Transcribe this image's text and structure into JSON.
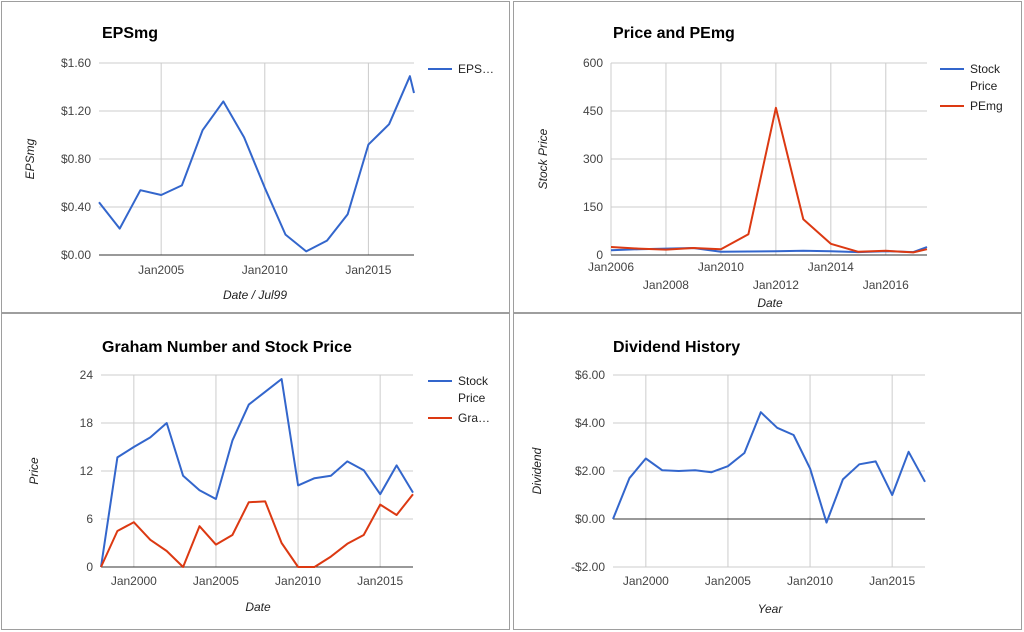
{
  "colors": {
    "blue": "#3366cc",
    "red": "#dc3912",
    "grid": "#cccccc",
    "axis": "#333333"
  },
  "chart_data": [
    {
      "type": "line",
      "title": "EPSmg",
      "xlabel": "Date / Jul99",
      "ylabel": "EPSmg",
      "ylim": [
        0,
        1.6
      ],
      "yticks": [
        0,
        0.4,
        0.8,
        1.2,
        1.6
      ],
      "ytick_labels": [
        "$0.00",
        "$0.40",
        "$0.80",
        "$1.20",
        "$1.60"
      ],
      "xlim": [
        2002,
        2017.2
      ],
      "xticks": [
        2005,
        2010,
        2015
      ],
      "xtick_labels": [
        "Jan2005",
        "Jan2010",
        "Jan2015"
      ],
      "grid": true,
      "legend_position": "right",
      "series": [
        {
          "name": "EPS…",
          "color": "#3366cc",
          "x": [
            2002,
            2003,
            2004,
            2005,
            2006,
            2007,
            2008,
            2009,
            2010,
            2011,
            2012,
            2013,
            2014,
            2015,
            2016,
            2017,
            2017.2
          ],
          "y": [
            0.44,
            0.22,
            0.54,
            0.5,
            0.58,
            1.04,
            1.28,
            0.98,
            0.56,
            0.17,
            0.03,
            0.12,
            0.34,
            0.92,
            1.09,
            1.49,
            1.35
          ]
        }
      ]
    },
    {
      "type": "line",
      "title": "Price and PEmg",
      "xlabel": "Date",
      "ylabel": "Stock Price",
      "ylim": [
        0,
        600
      ],
      "yticks": [
        0,
        150,
        300,
        450,
        600
      ],
      "ytick_labels": [
        "0",
        "150",
        "300",
        "450",
        "600"
      ],
      "xlim": [
        2006,
        2017.5
      ],
      "xticks": [
        2006,
        2008,
        2010,
        2012,
        2014,
        2016
      ],
      "xtick_labels": [
        "Jan2006",
        "Jan2008",
        "Jan2010",
        "Jan2012",
        "Jan2014",
        "Jan2016"
      ],
      "grid": true,
      "legend_position": "right",
      "series": [
        {
          "name": "Stock Price",
          "color": "#3366cc",
          "x": [
            2006,
            2007,
            2008,
            2009,
            2010,
            2011,
            2012,
            2013,
            2014,
            2015,
            2016,
            2017,
            2017.5
          ],
          "y": [
            15,
            18,
            20,
            22,
            10,
            11,
            12,
            13,
            12,
            9,
            12,
            9,
            25
          ]
        },
        {
          "name": "PEmg",
          "color": "#dc3912",
          "x": [
            2006,
            2007,
            2008,
            2009,
            2010,
            2011,
            2012,
            2013,
            2014,
            2015,
            2016,
            2017,
            2017.5
          ],
          "y": [
            25,
            20,
            17,
            22,
            18,
            65,
            460,
            112,
            35,
            10,
            13,
            8,
            18
          ]
        }
      ]
    },
    {
      "type": "line",
      "title": "Graham Number and Stock Price",
      "xlabel": "Date",
      "ylabel": "Price",
      "ylim": [
        0,
        24
      ],
      "yticks": [
        0,
        6,
        12,
        18,
        24
      ],
      "ytick_labels": [
        "0",
        "6",
        "12",
        "18",
        "24"
      ],
      "xlim": [
        1998,
        2017
      ],
      "xticks": [
        2000,
        2005,
        2010,
        2015
      ],
      "xtick_labels": [
        "Jan2000",
        "Jan2005",
        "Jan2010",
        "Jan2015"
      ],
      "grid": true,
      "legend_position": "right",
      "series": [
        {
          "name": "Stock Price",
          "color": "#3366cc",
          "x": [
            1998,
            1999,
            2000,
            2001,
            2002,
            2003,
            2004,
            2005,
            2006,
            2007,
            2008,
            2009,
            2010,
            2011,
            2012,
            2013,
            2014,
            2015,
            2016,
            2017
          ],
          "y": [
            0,
            13.7,
            15,
            16.2,
            18,
            11.4,
            9.6,
            8.5,
            15.8,
            20.3,
            21.9,
            23.5,
            10.2,
            11.1,
            11.4,
            13.2,
            12.1,
            9.1,
            12.7,
            9.3
          ]
        },
        {
          "name": "Gra…",
          "color": "#dc3912",
          "x": [
            1998,
            1999,
            2000,
            2001,
            2002,
            2003,
            2004,
            2005,
            2006,
            2007,
            2008,
            2009,
            2010,
            2011,
            2012,
            2013,
            2014,
            2015,
            2016,
            2017
          ],
          "y": [
            0,
            4.5,
            5.6,
            3.4,
            2.0,
            0,
            5.1,
            2.8,
            4.0,
            8.1,
            8.2,
            3.0,
            0,
            0,
            1.3,
            2.9,
            4.0,
            7.8,
            6.5,
            9.1
          ]
        }
      ]
    },
    {
      "type": "line",
      "title": "Dividend History",
      "xlabel": "Year",
      "ylabel": "Dividend",
      "ylim": [
        -2,
        6
      ],
      "yticks": [
        -2,
        0,
        2,
        4,
        6
      ],
      "ytick_labels": [
        "-$2.00",
        "$0.00",
        "$2.00",
        "$4.00",
        "$6.00"
      ],
      "xlim": [
        1998,
        2017
      ],
      "xticks": [
        2000,
        2005,
        2010,
        2015
      ],
      "xtick_labels": [
        "Jan2000",
        "Jan2005",
        "Jan2010",
        "Jan2015"
      ],
      "grid": true,
      "legend_position": "none",
      "series": [
        {
          "color": "#3366cc",
          "x": [
            1998,
            1999,
            2000,
            2001,
            2002,
            2003,
            2004,
            2005,
            2006,
            2007,
            2008,
            2009,
            2010,
            2011,
            2012,
            2013,
            2014,
            2015,
            2016,
            2017
          ],
          "y": [
            0,
            1.7,
            2.52,
            2.03,
            2.0,
            2.03,
            1.95,
            2.2,
            2.75,
            4.45,
            3.8,
            3.5,
            2.1,
            -0.15,
            1.65,
            2.28,
            2.4,
            1.0,
            2.8,
            1.55
          ]
        }
      ]
    }
  ]
}
